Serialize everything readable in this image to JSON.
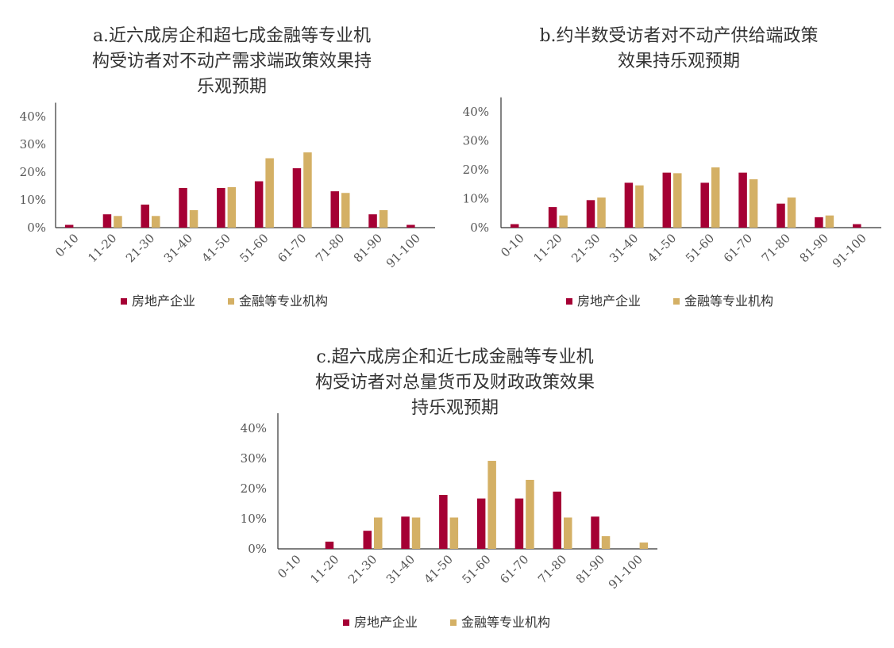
{
  "legend": {
    "series1": "房地产企业",
    "series2": "金融等专业机构"
  },
  "colors": {
    "series1": "#A50034",
    "series2": "#D4B065",
    "axis": "#333333"
  },
  "chart_data": [
    {
      "type": "bar",
      "title_lines": [
        "a.近六成房企和超七成金融等专业机",
        "构受访者对不动产需求端政策效果持",
        "乐观预期"
      ],
      "categories": [
        "0-10",
        "11-20",
        "21-30",
        "31-40",
        "41-50",
        "51-60",
        "61-70",
        "71-80",
        "81-90",
        "91-100"
      ],
      "series": [
        {
          "name": "房地产企业",
          "values": [
            1,
            4.8,
            8.3,
            14.3,
            14.3,
            16.7,
            21.4,
            13.1,
            4.8,
            1
          ]
        },
        {
          "name": "金融等专业机构",
          "values": [
            0,
            4.2,
            4.2,
            6.3,
            14.6,
            25,
            27.1,
            12.5,
            6.3,
            0
          ]
        }
      ],
      "yticks": [
        "0%",
        "10%",
        "20%",
        "30%",
        "40%"
      ],
      "ylim": [
        0,
        45
      ]
    },
    {
      "type": "bar",
      "title_lines": [
        "b.约半数受访者对不动产供给端政策",
        "效果持乐观预期"
      ],
      "categories": [
        "0-10",
        "11-20",
        "21-30",
        "31-40",
        "41-50",
        "51-60",
        "61-70",
        "71-80",
        "81-90",
        "91-100"
      ],
      "series": [
        {
          "name": "房地产企业",
          "values": [
            1.2,
            7.1,
            9.5,
            15.5,
            19,
            15.5,
            19,
            8.3,
            3.6,
            1.2
          ]
        },
        {
          "name": "金融等专业机构",
          "values": [
            0,
            4.2,
            10.4,
            14.6,
            18.8,
            20.8,
            16.7,
            10.4,
            4.2,
            0
          ]
        }
      ],
      "yticks": [
        "0%",
        "10%",
        "20%",
        "30%",
        "40%"
      ],
      "ylim": [
        0,
        45
      ]
    },
    {
      "type": "bar",
      "title_lines": [
        "c.超六成房企和近七成金融等专业机",
        "构受访者对总量货币及财政政策效果",
        "持乐观预期"
      ],
      "categories": [
        "0-10",
        "11-20",
        "21-30",
        "31-40",
        "41-50",
        "51-60",
        "61-70",
        "71-80",
        "81-90",
        "91-100"
      ],
      "series": [
        {
          "name": "房地产企业",
          "values": [
            0,
            2.4,
            6,
            10.7,
            17.9,
            16.7,
            16.7,
            19,
            10.7,
            0
          ]
        },
        {
          "name": "金融等专业机构",
          "values": [
            0,
            0,
            10.4,
            10.4,
            10.4,
            29.2,
            22.9,
            10.4,
            4.2,
            2.1
          ]
        }
      ],
      "yticks": [
        "0%",
        "10%",
        "20%",
        "30%",
        "40%"
      ],
      "ylim": [
        0,
        45
      ]
    }
  ]
}
